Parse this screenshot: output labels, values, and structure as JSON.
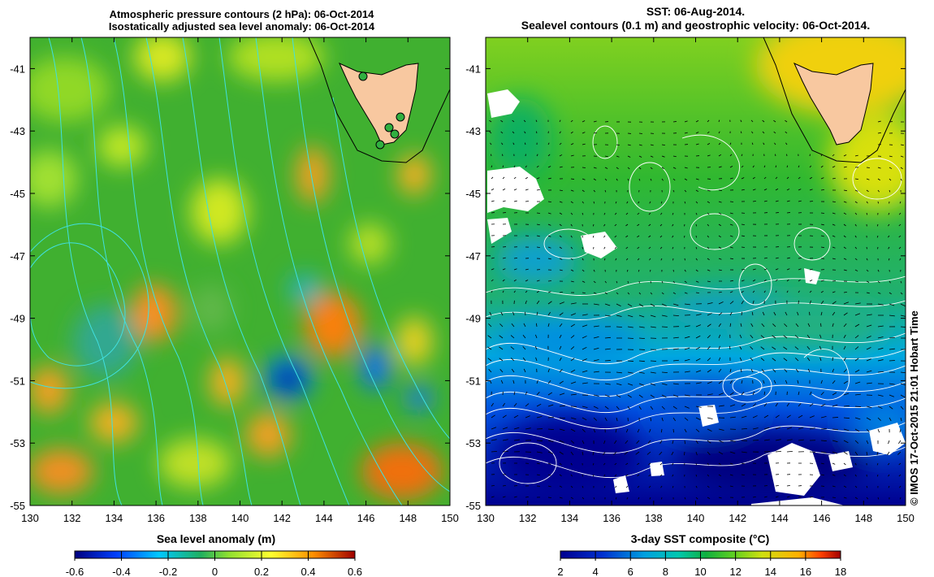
{
  "left_panel": {
    "title_line1": "Atmospheric pressure contours (2 hPa): 06-Oct-2014",
    "title_line2": "Isostatically adjusted sea level anomaly: 06-Oct-2014",
    "colorbar_label": "Sea level anomaly (m)",
    "colorbar_ticks": [
      "-0.6",
      "-0.4",
      "-0.2",
      "0",
      "0.2",
      "0.4",
      "0.6"
    ]
  },
  "right_panel": {
    "title_line1": "SST: 06-Aug-2014.",
    "title_line2": "Sealevel contours (0.1 m) and geostrophic velocity: 06-Oct-2014.",
    "colorbar_label": "3-day SST composite (°C)",
    "colorbar_ticks": [
      "2",
      "4",
      "6",
      "8",
      "10",
      "12",
      "14",
      "16",
      "18"
    ]
  },
  "axes": {
    "lon_ticks": [
      "130",
      "132",
      "134",
      "136",
      "138",
      "140",
      "142",
      "144",
      "146",
      "148",
      "150"
    ],
    "lat_ticks": [
      "-41",
      "-43",
      "-45",
      "-47",
      "-49",
      "-51",
      "-53",
      "-55"
    ]
  },
  "credit": "© IMOS 17-Oct-2015 21:01 Hobart Time",
  "colors": {
    "sla_scale": [
      "#00007f",
      "#0050ff",
      "#00c8ff",
      "#20b060",
      "#80d830",
      "#ffff30",
      "#ffb000",
      "#ff5000",
      "#a00000"
    ],
    "sst_scale": [
      "#00008f",
      "#0030d0",
      "#00a0e0",
      "#00c8b0",
      "#10b040",
      "#60d020",
      "#d0e010",
      "#ffb000",
      "#ff4000",
      "#a00000"
    ],
    "land": "#f8c8a0",
    "pressure_contour": "#40e0e0"
  }
}
